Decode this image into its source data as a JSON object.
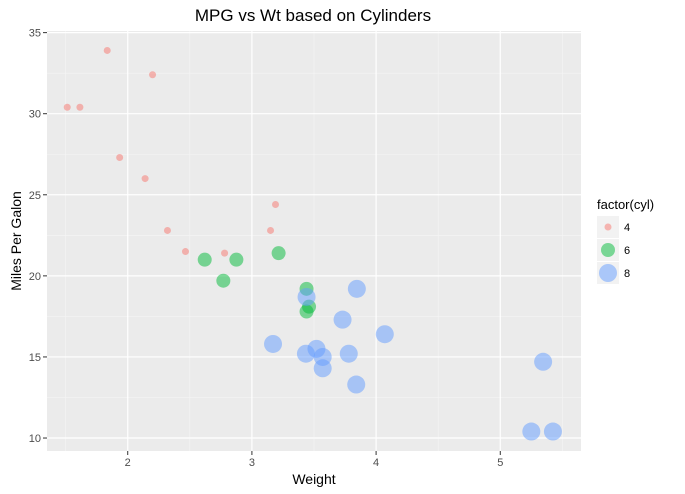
{
  "chart_data": {
    "type": "scatter",
    "title": "MPG vs Wt based on Cylinders",
    "xlabel": "Weight",
    "ylabel": "Miles Per Galon",
    "xlim": [
      1.35,
      5.65
    ],
    "ylim": [
      9.2,
      35.1
    ],
    "xticks": [
      2,
      3,
      4,
      5
    ],
    "yticks": [
      10,
      15,
      20,
      25,
      30,
      35
    ],
    "grid": true,
    "legend": {
      "title": "factor(cyl)",
      "placement": "right",
      "entries": [
        "4",
        "6",
        "8"
      ]
    },
    "series": [
      {
        "name": "4",
        "color": "#F8766D",
        "points": [
          [
            1.513,
            30.4
          ],
          [
            1.615,
            30.4
          ],
          [
            1.835,
            33.9
          ],
          [
            1.935,
            27.3
          ],
          [
            2.14,
            26.0
          ],
          [
            2.2,
            32.4
          ],
          [
            2.32,
            22.8
          ],
          [
            2.465,
            21.5
          ],
          [
            2.78,
            21.4
          ],
          [
            3.15,
            22.8
          ],
          [
            3.19,
            24.4
          ]
        ]
      },
      {
        "name": "6",
        "color": "#00BA38",
        "points": [
          [
            2.62,
            21.0
          ],
          [
            2.77,
            19.7
          ],
          [
            2.875,
            21.0
          ],
          [
            3.215,
            21.4
          ],
          [
            3.44,
            19.2
          ],
          [
            3.44,
            17.8
          ],
          [
            3.46,
            18.1
          ]
        ]
      },
      {
        "name": "8",
        "color": "#619CFF",
        "points": [
          [
            3.17,
            15.8
          ],
          [
            3.435,
            15.2
          ],
          [
            3.44,
            18.7
          ],
          [
            3.52,
            15.5
          ],
          [
            3.57,
            14.3
          ],
          [
            3.57,
            15.0
          ],
          [
            3.73,
            17.3
          ],
          [
            3.78,
            15.2
          ],
          [
            3.84,
            13.3
          ],
          [
            3.845,
            19.2
          ],
          [
            4.07,
            16.4
          ],
          [
            5.25,
            10.4
          ],
          [
            5.345,
            14.7
          ],
          [
            5.424,
            10.4
          ]
        ]
      }
    ]
  }
}
